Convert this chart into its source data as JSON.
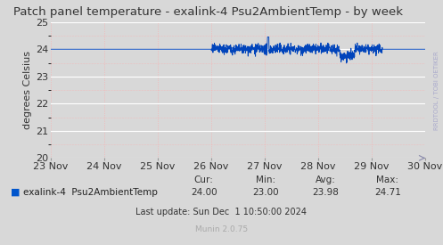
{
  "title": "Patch panel temperature - exalink-4 Psu2AmbientTemp - by week",
  "ylabel": "degrees Celsius",
  "bg_color": "#d8d8d8",
  "plot_bg_color": "#d8d8d8",
  "line_color": "#0044bb",
  "grid_color_white": "#ffffff",
  "grid_color_pink": "#ffaaaa",
  "ylim": [
    20,
    25
  ],
  "yticks": [
    20,
    21,
    22,
    23,
    24,
    25
  ],
  "xlabel_dates": [
    "23 Nov",
    "24 Nov",
    "25 Nov",
    "26 Nov",
    "27 Nov",
    "28 Nov",
    "29 Nov",
    "30 Nov"
  ],
  "legend_label": "exalink-4  Psu2AmbientTemp",
  "legend_color": "#0055cc",
  "cur": "24.00",
  "min": "23.00",
  "avg": "23.98",
  "max": "24.71",
  "last_update": "Last update: Sun Dec  1 10:50:00 2024",
  "munin_version": "Munin 2.0.75",
  "rrdtool_label": "RRDTOOL / TOBI OETIKER",
  "title_fontsize": 9.5,
  "axis_fontsize": 8,
  "tick_fontsize": 8,
  "small_fontsize": 7,
  "rrd_fontsize": 5
}
